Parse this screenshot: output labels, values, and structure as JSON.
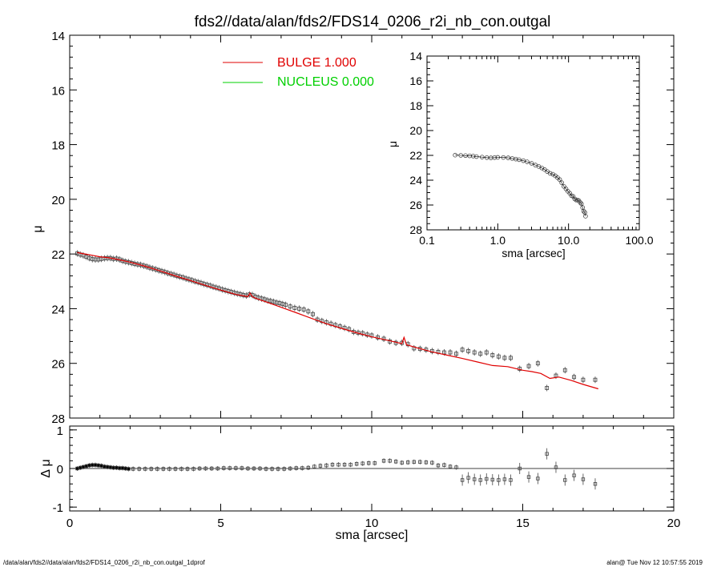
{
  "chart_data": [
    {
      "type": "scatter",
      "role": "main",
      "title": "fds2//data/alan/fds2/FDS14_0206_r2i_nb_con.outgal",
      "xlabel": "",
      "ylabel": "μ",
      "xlim": [
        0,
        20
      ],
      "ylim": [
        28,
        14
      ],
      "yticks": [
        "14",
        "16",
        "18",
        "20",
        "22",
        "24",
        "26",
        "28"
      ],
      "legend": [
        {
          "label": "BULGE  1.000",
          "color": "#e00000"
        },
        {
          "label": "NUCLEUS  0.000",
          "color": "#00d000"
        }
      ],
      "legend_position": "top-center",
      "series": [
        {
          "name": "data",
          "marker": "square-with-errorbar",
          "color": "#555555",
          "x": [
            0.25,
            0.35,
            0.45,
            0.55,
            0.65,
            0.75,
            0.85,
            0.95,
            1.05,
            1.15,
            1.25,
            1.35,
            1.45,
            1.55,
            1.65,
            1.75,
            1.85,
            1.95,
            2.05,
            2.15,
            2.25,
            2.35,
            2.45,
            2.55,
            2.65,
            2.75,
            2.85,
            2.95,
            3.05,
            3.15,
            3.25,
            3.35,
            3.45,
            3.55,
            3.65,
            3.75,
            3.85,
            3.95,
            4.05,
            4.15,
            4.25,
            4.35,
            4.45,
            4.55,
            4.65,
            4.75,
            4.85,
            4.95,
            5.05,
            5.15,
            5.25,
            5.35,
            5.45,
            5.55,
            5.65,
            5.75,
            5.85,
            5.95,
            6.05,
            6.15,
            6.25,
            6.35,
            6.45,
            6.55,
            6.65,
            6.75,
            6.85,
            6.95,
            7.05,
            7.15,
            7.3,
            7.45,
            7.6,
            7.75,
            7.9,
            8.05,
            8.2,
            8.35,
            8.5,
            8.65,
            8.8,
            8.95,
            9.1,
            9.25,
            9.4,
            9.55,
            9.7,
            9.85,
            10.0,
            10.2,
            10.4,
            10.6,
            10.8,
            11.0,
            11.2,
            11.4,
            11.6,
            11.8,
            12.0,
            12.2,
            12.4,
            12.6,
            12.8,
            13.0,
            13.2,
            13.4,
            13.6,
            13.8,
            14.0,
            14.2,
            14.4,
            14.6,
            14.9,
            15.2,
            15.5,
            15.8,
            16.1,
            16.4,
            16.7,
            17.0,
            17.4
          ],
          "y": [
            21.98,
            22.02,
            22.05,
            22.1,
            22.15,
            22.19,
            22.2,
            22.2,
            22.18,
            22.16,
            22.15,
            22.15,
            22.18,
            22.17,
            22.2,
            22.25,
            22.28,
            22.3,
            22.33,
            22.36,
            22.38,
            22.4,
            22.43,
            22.46,
            22.5,
            22.53,
            22.56,
            22.6,
            22.63,
            22.66,
            22.7,
            22.73,
            22.76,
            22.8,
            22.83,
            22.86,
            22.9,
            22.93,
            22.96,
            23.0,
            23.03,
            23.06,
            23.1,
            23.13,
            23.16,
            23.2,
            23.23,
            23.26,
            23.3,
            23.33,
            23.36,
            23.39,
            23.42,
            23.45,
            23.47,
            23.5,
            23.52,
            23.48,
            23.5,
            23.56,
            23.6,
            23.63,
            23.66,
            23.7,
            23.72,
            23.75,
            23.78,
            23.8,
            23.83,
            23.86,
            23.92,
            23.97,
            24.0,
            24.03,
            24.1,
            24.2,
            24.4,
            24.45,
            24.5,
            24.55,
            24.6,
            24.65,
            24.7,
            24.75,
            24.85,
            24.88,
            24.9,
            24.95,
            24.98,
            25.05,
            25.1,
            25.2,
            25.25,
            25.25,
            25.3,
            25.45,
            25.47,
            25.5,
            25.55,
            25.58,
            25.6,
            25.6,
            25.65,
            25.5,
            25.55,
            25.6,
            25.65,
            25.6,
            25.7,
            25.75,
            25.8,
            25.8,
            26.2,
            26.1,
            26.0,
            26.9,
            26.45,
            26.25,
            26.5,
            26.6,
            26.6
          ]
        },
        {
          "name": "BULGE  1.000",
          "marker": "line",
          "color": "#e00000",
          "x": [
            0.25,
            0.5,
            0.8,
            1.0,
            1.3,
            1.6,
            2.0,
            2.5,
            3.0,
            3.5,
            4.0,
            4.5,
            5.0,
            5.5,
            5.9,
            5.97,
            6.05,
            6.2,
            6.5,
            7.0,
            7.5,
            8.0,
            8.5,
            9.0,
            9.5,
            10.0,
            10.5,
            11.0,
            11.07,
            11.15,
            11.5,
            12.0,
            12.5,
            13.0,
            13.5,
            14.0,
            14.5,
            15.0,
            15.3,
            15.6,
            15.9,
            16.2,
            16.6,
            17.0,
            17.5
          ],
          "y": [
            21.95,
            22.0,
            22.06,
            22.1,
            22.14,
            22.2,
            22.3,
            22.45,
            22.62,
            22.8,
            22.97,
            23.15,
            23.32,
            23.48,
            23.56,
            23.43,
            23.57,
            23.64,
            23.75,
            23.95,
            24.15,
            24.35,
            24.55,
            24.72,
            24.88,
            25.03,
            25.15,
            25.28,
            25.05,
            25.32,
            25.43,
            25.58,
            25.7,
            25.82,
            25.95,
            26.08,
            26.12,
            26.25,
            26.3,
            26.37,
            26.55,
            26.5,
            26.62,
            26.77,
            26.93
          ]
        }
      ]
    },
    {
      "type": "scatter",
      "role": "residual",
      "xlabel": "sma [arcsec]",
      "ylabel": "Δ μ",
      "xlim": [
        0,
        20
      ],
      "ylim": [
        -1.1,
        1.1
      ],
      "xticks": [
        "0",
        "5",
        "10",
        "15",
        "20"
      ],
      "yticks": [
        "1",
        "0",
        "-1"
      ],
      "series": [
        {
          "name": "residual",
          "marker": "square-with-errorbar",
          "color": "#555555",
          "x": [
            0.25,
            0.35,
            0.45,
            0.55,
            0.65,
            0.75,
            0.85,
            0.95,
            1.05,
            1.15,
            1.25,
            1.35,
            1.45,
            1.55,
            1.65,
            1.75,
            1.85,
            1.95,
            2.1,
            2.3,
            2.5,
            2.7,
            2.9,
            3.1,
            3.3,
            3.5,
            3.7,
            3.9,
            4.1,
            4.3,
            4.5,
            4.7,
            4.9,
            5.1,
            5.3,
            5.5,
            5.7,
            5.9,
            6.1,
            6.3,
            6.5,
            6.7,
            6.9,
            7.1,
            7.3,
            7.5,
            7.7,
            7.9,
            8.1,
            8.3,
            8.5,
            8.7,
            8.9,
            9.1,
            9.3,
            9.5,
            9.7,
            9.9,
            10.1,
            10.4,
            10.6,
            10.8,
            11.0,
            11.2,
            11.4,
            11.6,
            11.8,
            12.0,
            12.2,
            12.4,
            12.6,
            12.8,
            13.0,
            13.2,
            13.4,
            13.6,
            13.8,
            14.0,
            14.2,
            14.4,
            14.6,
            14.9,
            15.2,
            15.5,
            15.8,
            16.1,
            16.4,
            16.7,
            17.0,
            17.4
          ],
          "y": [
            0.0,
            0.02,
            0.04,
            0.06,
            0.08,
            0.09,
            0.09,
            0.08,
            0.07,
            0.05,
            0.04,
            0.03,
            0.02,
            0.02,
            0.01,
            0.01,
            0.0,
            -0.01,
            -0.01,
            -0.01,
            -0.01,
            -0.01,
            -0.01,
            -0.01,
            -0.01,
            -0.01,
            -0.01,
            -0.01,
            -0.01,
            0.0,
            0.0,
            0.0,
            0.0,
            0.01,
            0.01,
            0.01,
            0.01,
            0.0,
            0.0,
            0.0,
            -0.01,
            -0.01,
            -0.01,
            -0.01,
            0.0,
            0.01,
            0.01,
            0.02,
            0.05,
            0.07,
            0.08,
            0.1,
            0.1,
            0.1,
            0.1,
            0.12,
            0.13,
            0.14,
            0.14,
            0.2,
            0.2,
            0.18,
            0.15,
            0.16,
            0.17,
            0.17,
            0.16,
            0.15,
            0.08,
            0.09,
            0.05,
            0.03,
            -0.3,
            -0.24,
            -0.28,
            -0.3,
            -0.27,
            -0.29,
            -0.3,
            -0.28,
            -0.3,
            0.0,
            -0.22,
            -0.26,
            0.38,
            0.03,
            -0.3,
            -0.18,
            -0.28,
            -0.4
          ]
        }
      ]
    },
    {
      "type": "scatter",
      "role": "inset",
      "xlabel": "sma [arcsec]",
      "ylabel": "μ",
      "xscale": "log",
      "xlim": [
        0.1,
        100
      ],
      "ylim": [
        28,
        14
      ],
      "xticks": [
        "0.1",
        "1.0",
        "10.0",
        "100.0"
      ],
      "yticks": [
        "14",
        "16",
        "18",
        "20",
        "22",
        "24",
        "26",
        "28"
      ],
      "series": [
        {
          "name": "data",
          "marker": "circle",
          "color": "#555555",
          "x": [
            0.25,
            0.3,
            0.35,
            0.4,
            0.45,
            0.5,
            0.6,
            0.7,
            0.8,
            0.9,
            1.0,
            1.2,
            1.4,
            1.6,
            1.8,
            2.0,
            2.3,
            2.6,
            3.0,
            3.4,
            3.8,
            4.2,
            4.6,
            5.0,
            5.5,
            6.0,
            6.5,
            7.0,
            7.5,
            8.0,
            8.6,
            9.2,
            9.8,
            10.4,
            11.0,
            11.6,
            12.2,
            12.8,
            13.4,
            14.0,
            14.6,
            15.2,
            15.8,
            16.4,
            17.0,
            17.4
          ],
          "y": [
            21.98,
            22.0,
            22.02,
            22.04,
            22.06,
            22.1,
            22.14,
            22.18,
            22.2,
            22.18,
            22.16,
            22.17,
            22.2,
            22.25,
            22.3,
            22.35,
            22.43,
            22.52,
            22.64,
            22.78,
            22.9,
            23.02,
            23.15,
            23.3,
            23.45,
            23.52,
            23.65,
            23.8,
            23.95,
            24.2,
            24.5,
            24.7,
            24.9,
            25.05,
            25.25,
            25.3,
            25.5,
            25.6,
            25.6,
            25.65,
            25.8,
            25.9,
            26.2,
            26.5,
            26.6,
            26.9
          ]
        }
      ]
    }
  ],
  "footer": {
    "left": "/data/alan/fds2//data/alan/fds2/FDS14_0206_r2i_nb_con.outgal_1dprof",
    "right": "alan@  Tue Nov 12 10:57:55 2019"
  }
}
